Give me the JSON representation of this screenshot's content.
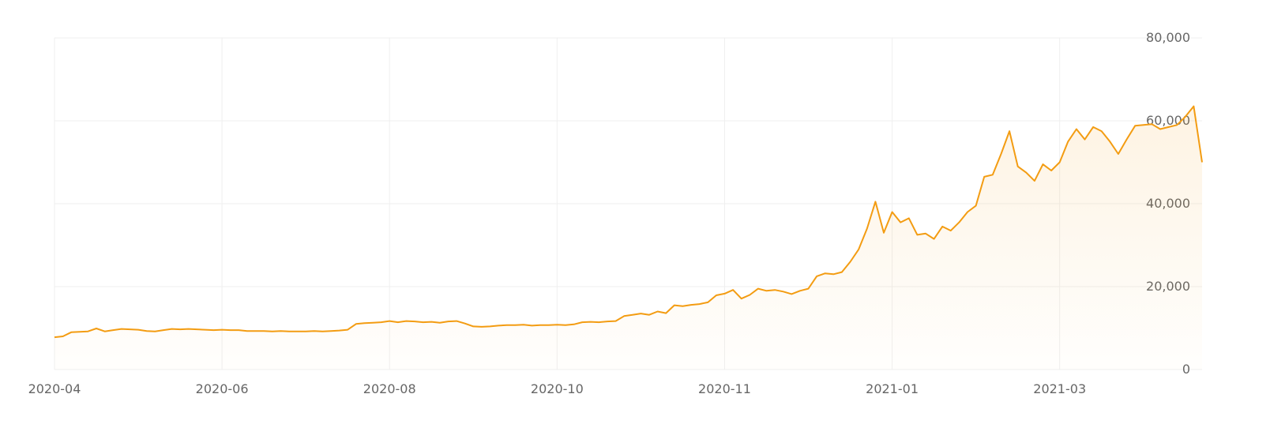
{
  "chart_data": {
    "type": "line",
    "color": "#f39c12",
    "grid": true,
    "values": [
      7800,
      8000,
      9000,
      9100,
      9200,
      9900,
      9200,
      9500,
      9800,
      9700,
      9600,
      9300,
      9200,
      9500,
      9800,
      9700,
      9800,
      9700,
      9600,
      9500,
      9600,
      9500,
      9500,
      9300,
      9300,
      9300,
      9200,
      9300,
      9200,
      9200,
      9200,
      9300,
      9200,
      9300,
      9400,
      9600,
      11000,
      11200,
      11300,
      11400,
      11700,
      11400,
      11700,
      11600,
      11400,
      11500,
      11300,
      11600,
      11700,
      11100,
      10400,
      10300,
      10400,
      10600,
      10700,
      10700,
      10800,
      10600,
      10700,
      10700,
      10800,
      10700,
      10900,
      11400,
      11500,
      11400,
      11600,
      11700,
      12900,
      13200,
      13500,
      13200,
      14000,
      13600,
      15500,
      15300,
      15600,
      15800,
      16200,
      17900,
      18300,
      19200,
      17100,
      18000,
      19500,
      19000,
      19200,
      18800,
      18200,
      19000,
      19500,
      22500,
      23200,
      23000,
      23500,
      26000,
      29000,
      34000,
      40500,
      33000,
      38000,
      35500,
      36500,
      32500,
      32800,
      31500,
      34500,
      33500,
      35500,
      38000,
      39500,
      46500,
      47000,
      52000,
      57500,
      49000,
      47500,
      45500,
      49500,
      48000,
      50000,
      55000,
      58000,
      55500,
      58500,
      57500,
      55000,
      52000,
      55500,
      58800,
      59000,
      59200,
      58000,
      58500,
      59000,
      61000,
      63500,
      50000
    ],
    "xlim": [
      0,
      137
    ],
    "xticks": [
      {
        "value": 0,
        "label": "2020-04"
      },
      {
        "value": 20,
        "label": "2020-06"
      },
      {
        "value": 40,
        "label": "2020-08"
      },
      {
        "value": 60,
        "label": "2020-10"
      },
      {
        "value": 80,
        "label": "2020-11"
      },
      {
        "value": 100,
        "label": "2021-01"
      },
      {
        "value": 120,
        "label": "2021-03"
      }
    ],
    "ylim": [
      0,
      80000
    ],
    "yticks": [
      0,
      {
        "value": 20000,
        "label": "20,000"
      },
      {
        "value": 40000,
        "label": "40,000"
      },
      {
        "value": 60000,
        "label": "60,000"
      },
      {
        "value": 80000,
        "label": "80,000"
      }
    ]
  }
}
